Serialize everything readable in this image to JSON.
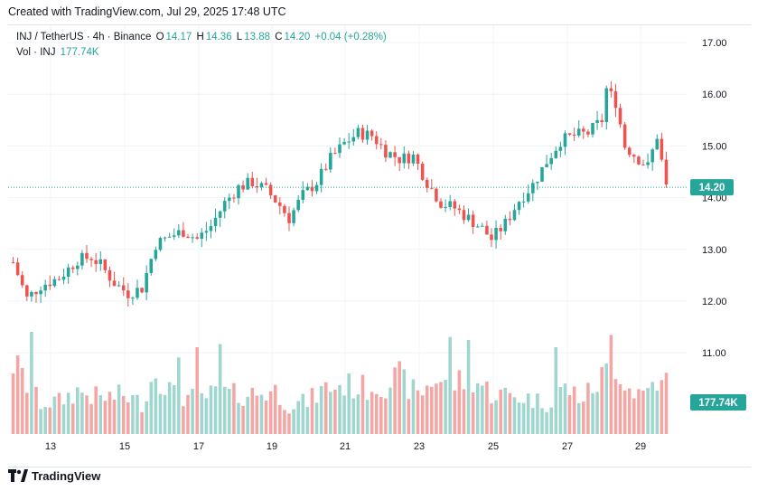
{
  "header": {
    "text": "Created with TradingView.com, Jul 29, 2025 17:48 UTC"
  },
  "legend": {
    "symbol": "INJ / TetherUS · 4h · Binance",
    "o_label": "O",
    "o": "14.17",
    "h_label": "H",
    "h": "14.36",
    "l_label": "L",
    "l": "13.88",
    "c_label": "C",
    "c": "14.20",
    "change": "+0.04 (+0.28%)",
    "vol_label": "Vol · INJ",
    "vol": "177.74K"
  },
  "footer": {
    "brand": "TradingView"
  },
  "colors": {
    "up": "#26a69a",
    "down": "#ef5350",
    "up_vol": "#9fd6cf",
    "down_vol": "#f4a6a4"
  },
  "chart_data": {
    "type": "candlestick",
    "interval": "4h",
    "x_tick_labels": [
      "13",
      "15",
      "17",
      "19",
      "21",
      "23",
      "25",
      "27",
      "29"
    ],
    "y_tick_labels": [
      "12.00",
      "13.00",
      "14.00",
      "15.00",
      "16.00",
      "17.00"
    ],
    "y_range": [
      11.0,
      17.0
    ],
    "last_price": "14.20",
    "last_volume": "177.74K",
    "close_path": [
      [
        0,
        12.75
      ],
      [
        3,
        12.05
      ],
      [
        6,
        12.3
      ],
      [
        10,
        12.45
      ],
      [
        14,
        12.8
      ],
      [
        17,
        12.85
      ],
      [
        19,
        12.7
      ],
      [
        22,
        12.35
      ],
      [
        25,
        12.15
      ],
      [
        28,
        12.25
      ],
      [
        31,
        13.1
      ],
      [
        34,
        13.25
      ],
      [
        37,
        13.35
      ],
      [
        40,
        13.2
      ],
      [
        43,
        13.45
      ],
      [
        46,
        13.9
      ],
      [
        49,
        14.2
      ],
      [
        52,
        14.3
      ],
      [
        55,
        14.15
      ],
      [
        58,
        13.85
      ],
      [
        60,
        13.6
      ],
      [
        63,
        14.05
      ],
      [
        66,
        14.3
      ],
      [
        69,
        14.75
      ],
      [
        72,
        15.05
      ],
      [
        75,
        15.25
      ],
      [
        78,
        15.2
      ],
      [
        81,
        14.9
      ],
      [
        84,
        14.75
      ],
      [
        87,
        14.8
      ],
      [
        90,
        14.3
      ],
      [
        93,
        13.9
      ],
      [
        96,
        13.8
      ],
      [
        99,
        13.6
      ],
      [
        102,
        13.4
      ],
      [
        104,
        13.2
      ],
      [
        107,
        13.5
      ],
      [
        110,
        13.95
      ],
      [
        113,
        14.25
      ],
      [
        116,
        14.7
      ],
      [
        119,
        15.1
      ],
      [
        122,
        15.2
      ],
      [
        125,
        15.25
      ],
      [
        128,
        15.5
      ],
      [
        129,
        16.1
      ],
      [
        131,
        15.85
      ],
      [
        133,
        15.0
      ],
      [
        136,
        14.75
      ],
      [
        138,
        14.6
      ],
      [
        140,
        15.2
      ],
      [
        142,
        14.2
      ]
    ],
    "volume_path": [
      [
        0,
        0.7
      ],
      [
        3,
        0.48
      ],
      [
        6,
        0.3
      ],
      [
        10,
        0.32
      ],
      [
        14,
        0.42
      ],
      [
        19,
        0.35
      ],
      [
        24,
        0.38
      ],
      [
        28,
        0.3
      ],
      [
        31,
        0.62
      ],
      [
        35,
        0.38
      ],
      [
        40,
        0.35
      ],
      [
        45,
        0.4
      ],
      [
        49,
        0.38
      ],
      [
        53,
        0.4
      ],
      [
        57,
        0.42
      ],
      [
        60,
        0.28
      ],
      [
        64,
        0.32
      ],
      [
        68,
        0.45
      ],
      [
        72,
        0.48
      ],
      [
        76,
        0.45
      ],
      [
        80,
        0.48
      ],
      [
        84,
        0.55
      ],
      [
        88,
        0.38
      ],
      [
        92,
        0.55
      ],
      [
        96,
        0.5
      ],
      [
        100,
        0.55
      ],
      [
        104,
        0.4
      ],
      [
        108,
        0.38
      ],
      [
        112,
        0.35
      ],
      [
        116,
        0.3
      ],
      [
        120,
        0.45
      ],
      [
        124,
        0.35
      ],
      [
        128,
        0.55
      ],
      [
        131,
        0.7
      ],
      [
        134,
        0.45
      ],
      [
        137,
        0.4
      ],
      [
        140,
        0.55
      ],
      [
        142,
        0.35
      ]
    ],
    "volume_spikes": [
      [
        4,
        1.0
      ],
      [
        36,
        0.75
      ],
      [
        40,
        0.85
      ],
      [
        45,
        0.88
      ],
      [
        95,
        0.95
      ],
      [
        99,
        0.92
      ],
      [
        118,
        0.85
      ],
      [
        130,
        0.97
      ],
      [
        142,
        0.6
      ]
    ]
  }
}
